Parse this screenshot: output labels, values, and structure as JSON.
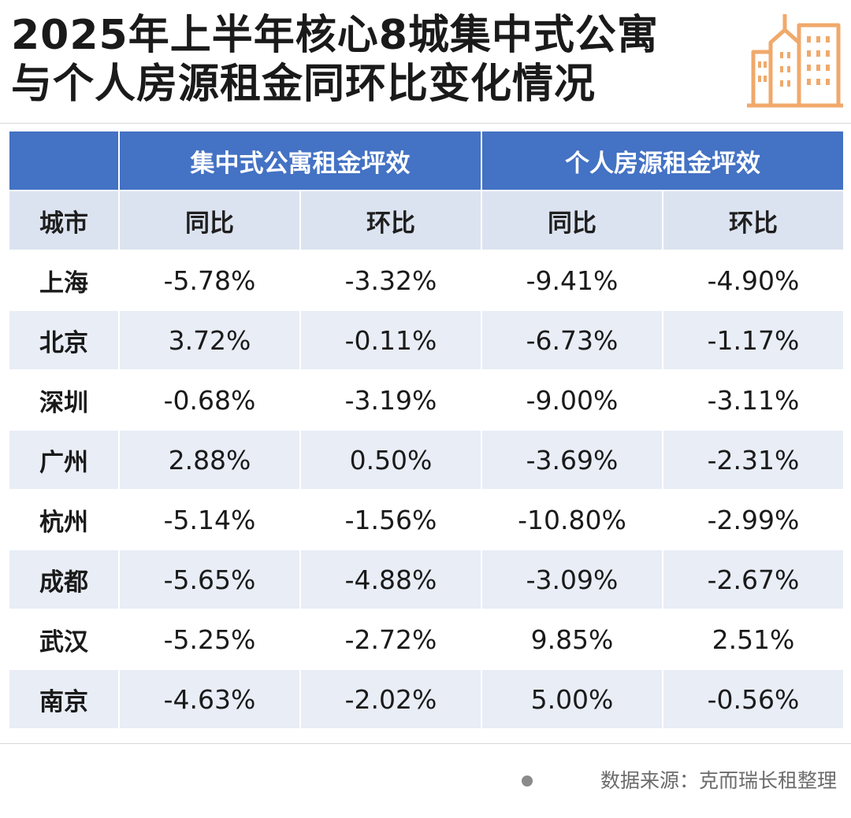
{
  "title_line1": "2025年上半年核心8城集中式公寓",
  "title_line2": "与个人房源租金同环比变化情况",
  "logo_icon": "city-buildings-icon",
  "logo_color": "#f0a96b",
  "header_blue": "#4472c4",
  "header_light": "#dce3f0",
  "stripe_color": "#e8edf6",
  "source": "数据来源：克而瑞长租整理",
  "chart_data": {
    "type": "table",
    "title": "2025年上半年核心8城集中式公寓与个人房源租金同环比变化情况",
    "group_headers": [
      "集中式公寓租金坪效",
      "个人房源租金坪效"
    ],
    "columns": [
      "城市",
      "同比",
      "环比",
      "同比",
      "环比"
    ],
    "rows": [
      {
        "city": "上海",
        "values": [
          "-5.78%",
          "-3.32%",
          "-9.41%",
          "-4.90%"
        ]
      },
      {
        "city": "北京",
        "values": [
          "3.72%",
          "-0.11%",
          "-6.73%",
          "-1.17%"
        ]
      },
      {
        "city": "深圳",
        "values": [
          "-0.68%",
          "-3.19%",
          "-9.00%",
          "-3.11%"
        ]
      },
      {
        "city": "广州",
        "values": [
          "2.88%",
          "0.50%",
          "-3.69%",
          "-2.31%"
        ]
      },
      {
        "city": "杭州",
        "values": [
          "-5.14%",
          "-1.56%",
          "-10.80%",
          "-2.99%"
        ]
      },
      {
        "city": "成都",
        "values": [
          "-5.65%",
          "-4.88%",
          "-3.09%",
          "-2.67%"
        ]
      },
      {
        "city": "武汉",
        "values": [
          "-5.25%",
          "-2.72%",
          "9.85%",
          "2.51%"
        ]
      },
      {
        "city": "南京",
        "values": [
          "-4.63%",
          "-2.02%",
          "5.00%",
          "-0.56%"
        ]
      }
    ]
  }
}
